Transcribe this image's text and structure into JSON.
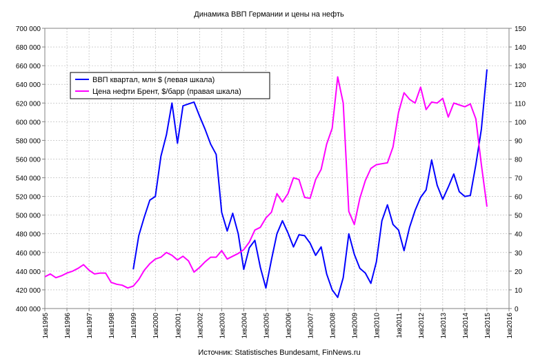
{
  "chart_data": {
    "type": "line",
    "title": "Динамика ВВП Германии и цены на нефть",
    "source": "Источник: Statistisches Bundesamt, FinNews.ru",
    "left_axis": {
      "ylim": [
        400000,
        700000
      ],
      "ticks": [
        "400 000",
        "420 000",
        "440 000",
        "460 000",
        "480 000",
        "500 000",
        "520 000",
        "540 000",
        "560 000",
        "580 000",
        "600 000",
        "620 000",
        "640 000",
        "660 000",
        "680 000",
        "700 000"
      ]
    },
    "right_axis": {
      "ylim": [
        0,
        150
      ],
      "ticks": [
        "0",
        "10",
        "20",
        "30",
        "40",
        "50",
        "60",
        "70",
        "80",
        "90",
        "100",
        "110",
        "120",
        "130",
        "140",
        "150"
      ]
    },
    "x_range": [
      1995,
      2016
    ],
    "x_ticks": [
      "1кв1995",
      "1кв1996",
      "1кв1997",
      "1кв1998",
      "1кв1999",
      "1кв2000",
      "1кв2001",
      "1кв2002",
      "1кв2003",
      "1кв2004",
      "1кв2005",
      "1кв2006",
      "1кв2007",
      "1кв2008",
      "1кв2009",
      "1кв2010",
      "1кв2011",
      "1кв2012",
      "1кв2013",
      "1кв2014",
      "1кв2015",
      "1кв2016"
    ],
    "grid": true,
    "legend_position": "top-left",
    "series": [
      {
        "name": "ВВП квартал, млн $ (левая шкала)",
        "axis": "left",
        "color": "#0000ff",
        "points": [
          [
            1999.0,
            442000
          ],
          [
            1999.25,
            478000
          ],
          [
            1999.5,
            498000
          ],
          [
            1999.75,
            516000
          ],
          [
            2000.0,
            520000
          ],
          [
            2000.25,
            563000
          ],
          [
            2000.5,
            586000
          ],
          [
            2000.75,
            620000
          ],
          [
            2001.0,
            577000
          ],
          [
            2001.25,
            617000
          ],
          [
            2001.5,
            619000
          ],
          [
            2001.75,
            621000
          ],
          [
            2002.0,
            606000
          ],
          [
            2002.25,
            592000
          ],
          [
            2002.5,
            576000
          ],
          [
            2002.75,
            565000
          ],
          [
            2003.0,
            503000
          ],
          [
            2003.25,
            483000
          ],
          [
            2003.5,
            502000
          ],
          [
            2003.75,
            480000
          ],
          [
            2004.0,
            442000
          ],
          [
            2004.25,
            465000
          ],
          [
            2004.5,
            473000
          ],
          [
            2004.75,
            444000
          ],
          [
            2005.0,
            422000
          ],
          [
            2005.25,
            452000
          ],
          [
            2005.5,
            480000
          ],
          [
            2005.75,
            494000
          ],
          [
            2006.0,
            481000
          ],
          [
            2006.25,
            466000
          ],
          [
            2006.5,
            479000
          ],
          [
            2006.75,
            478000
          ],
          [
            2007.0,
            470000
          ],
          [
            2007.25,
            457000
          ],
          [
            2007.5,
            466000
          ],
          [
            2007.75,
            437000
          ],
          [
            2008.0,
            420000
          ],
          [
            2008.25,
            412000
          ],
          [
            2008.5,
            433000
          ],
          [
            2008.75,
            480000
          ],
          [
            2009.0,
            458000
          ],
          [
            2009.25,
            443000
          ],
          [
            2009.5,
            438000
          ],
          [
            2009.75,
            427000
          ],
          [
            2010.0,
            450000
          ],
          [
            2010.25,
            494000
          ],
          [
            2010.5,
            511000
          ],
          [
            2010.75,
            490000
          ],
          [
            2011.0,
            484000
          ],
          [
            2011.25,
            462000
          ],
          [
            2011.5,
            487000
          ],
          [
            2011.75,
            505000
          ],
          [
            2012.0,
            519000
          ],
          [
            2012.25,
            527000
          ],
          [
            2012.5,
            559000
          ],
          [
            2012.75,
            532000
          ],
          [
            2013.0,
            517000
          ],
          [
            2013.25,
            530000
          ],
          [
            2013.5,
            544000
          ],
          [
            2013.75,
            525000
          ],
          [
            2014.0,
            520000
          ],
          [
            2014.25,
            521000
          ],
          [
            2014.5,
            554000
          ],
          [
            2014.75,
            592000
          ],
          [
            2015.0,
            656000
          ]
        ]
      },
      {
        "name": "Цена нефти Брент, $/барр (правая шкала)",
        "axis": "right",
        "color": "#ff00ff",
        "points": [
          [
            1995.0,
            17
          ],
          [
            1995.25,
            18.5
          ],
          [
            1995.5,
            16.5
          ],
          [
            1995.75,
            17.5
          ],
          [
            1996.0,
            19
          ],
          [
            1996.25,
            20
          ],
          [
            1996.5,
            21.5
          ],
          [
            1996.75,
            23.5
          ],
          [
            1997.0,
            20.5
          ],
          [
            1997.25,
            18.5
          ],
          [
            1997.5,
            19
          ],
          [
            1997.75,
            19
          ],
          [
            1998.0,
            14
          ],
          [
            1998.25,
            13
          ],
          [
            1998.5,
            12.5
          ],
          [
            1998.75,
            11
          ],
          [
            1999.0,
            12
          ],
          [
            1999.25,
            15.5
          ],
          [
            1999.5,
            20.5
          ],
          [
            1999.75,
            24
          ],
          [
            2000.0,
            26.5
          ],
          [
            2000.25,
            27.5
          ],
          [
            2000.5,
            30
          ],
          [
            2000.75,
            28.5
          ],
          [
            2001.0,
            26
          ],
          [
            2001.25,
            28
          ],
          [
            2001.5,
            25.5
          ],
          [
            2001.75,
            19.5
          ],
          [
            2002.0,
            22
          ],
          [
            2002.25,
            25
          ],
          [
            2002.5,
            27.5
          ],
          [
            2002.75,
            27.5
          ],
          [
            2003.0,
            31
          ],
          [
            2003.25,
            26.5
          ],
          [
            2003.5,
            28
          ],
          [
            2003.75,
            29.5
          ],
          [
            2004.0,
            31.5
          ],
          [
            2004.25,
            35.5
          ],
          [
            2004.5,
            42
          ],
          [
            2004.75,
            43.5
          ],
          [
            2005.0,
            48.5
          ],
          [
            2005.25,
            51.5
          ],
          [
            2005.5,
            61.5
          ],
          [
            2005.75,
            57
          ],
          [
            2006.0,
            61.5
          ],
          [
            2006.25,
            70
          ],
          [
            2006.5,
            69
          ],
          [
            2006.75,
            59.5
          ],
          [
            2007.0,
            59
          ],
          [
            2007.25,
            69
          ],
          [
            2007.5,
            74.5
          ],
          [
            2007.75,
            88
          ],
          [
            2008.0,
            96.5
          ],
          [
            2008.25,
            124
          ],
          [
            2008.5,
            110
          ],
          [
            2008.75,
            52
          ],
          [
            2009.0,
            45
          ],
          [
            2009.25,
            59
          ],
          [
            2009.5,
            68.5
          ],
          [
            2009.75,
            75
          ],
          [
            2010.0,
            77
          ],
          [
            2010.25,
            77.5
          ],
          [
            2010.5,
            78
          ],
          [
            2010.75,
            86.5
          ],
          [
            2011.0,
            105
          ],
          [
            2011.25,
            115.5
          ],
          [
            2011.5,
            112
          ],
          [
            2011.75,
            110
          ],
          [
            2012.0,
            118.5
          ],
          [
            2012.25,
            106.5
          ],
          [
            2012.5,
            110.5
          ],
          [
            2012.75,
            110
          ],
          [
            2013.0,
            112.5
          ],
          [
            2013.25,
            102.5
          ],
          [
            2013.5,
            110
          ],
          [
            2013.75,
            109
          ],
          [
            2014.0,
            108
          ],
          [
            2014.25,
            109.5
          ],
          [
            2014.5,
            101.5
          ],
          [
            2014.75,
            77
          ],
          [
            2015.0,
            54.5
          ]
        ]
      }
    ]
  }
}
